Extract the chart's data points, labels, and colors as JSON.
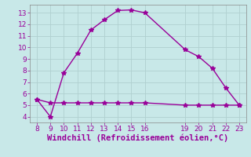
{
  "line1_x": [
    8,
    9,
    10,
    11,
    12,
    13,
    14,
    15,
    16,
    19,
    20,
    21,
    22,
    23
  ],
  "line1_y": [
    5.5,
    4.0,
    7.8,
    9.5,
    11.5,
    12.4,
    13.2,
    13.25,
    13.0,
    9.8,
    9.2,
    8.2,
    6.5,
    5.0
  ],
  "line2_x": [
    8,
    9,
    10,
    11,
    12,
    13,
    14,
    15,
    16,
    19,
    20,
    21,
    22,
    23
  ],
  "line2_y": [
    5.5,
    5.2,
    5.2,
    5.2,
    5.2,
    5.2,
    5.2,
    5.2,
    5.2,
    5.0,
    5.0,
    5.0,
    5.0,
    5.0
  ],
  "line_color": "#990099",
  "bg_color": "#c8e8e8",
  "grid_color": "#b0d0d0",
  "xlabel": "Windchill (Refroidissement éolien,°C)",
  "xlabel_color": "#990099",
  "xticks": [
    8,
    9,
    10,
    11,
    12,
    13,
    14,
    15,
    16,
    19,
    20,
    21,
    22,
    23
  ],
  "yticks": [
    4,
    5,
    6,
    7,
    8,
    9,
    10,
    11,
    12,
    13
  ],
  "ylim": [
    3.5,
    13.7
  ],
  "xlim": [
    7.5,
    23.5
  ],
  "tick_fontsize": 6.5,
  "xlabel_fontsize": 7.5,
  "marker": "*",
  "marker_size": 4,
  "linewidth": 1.0
}
